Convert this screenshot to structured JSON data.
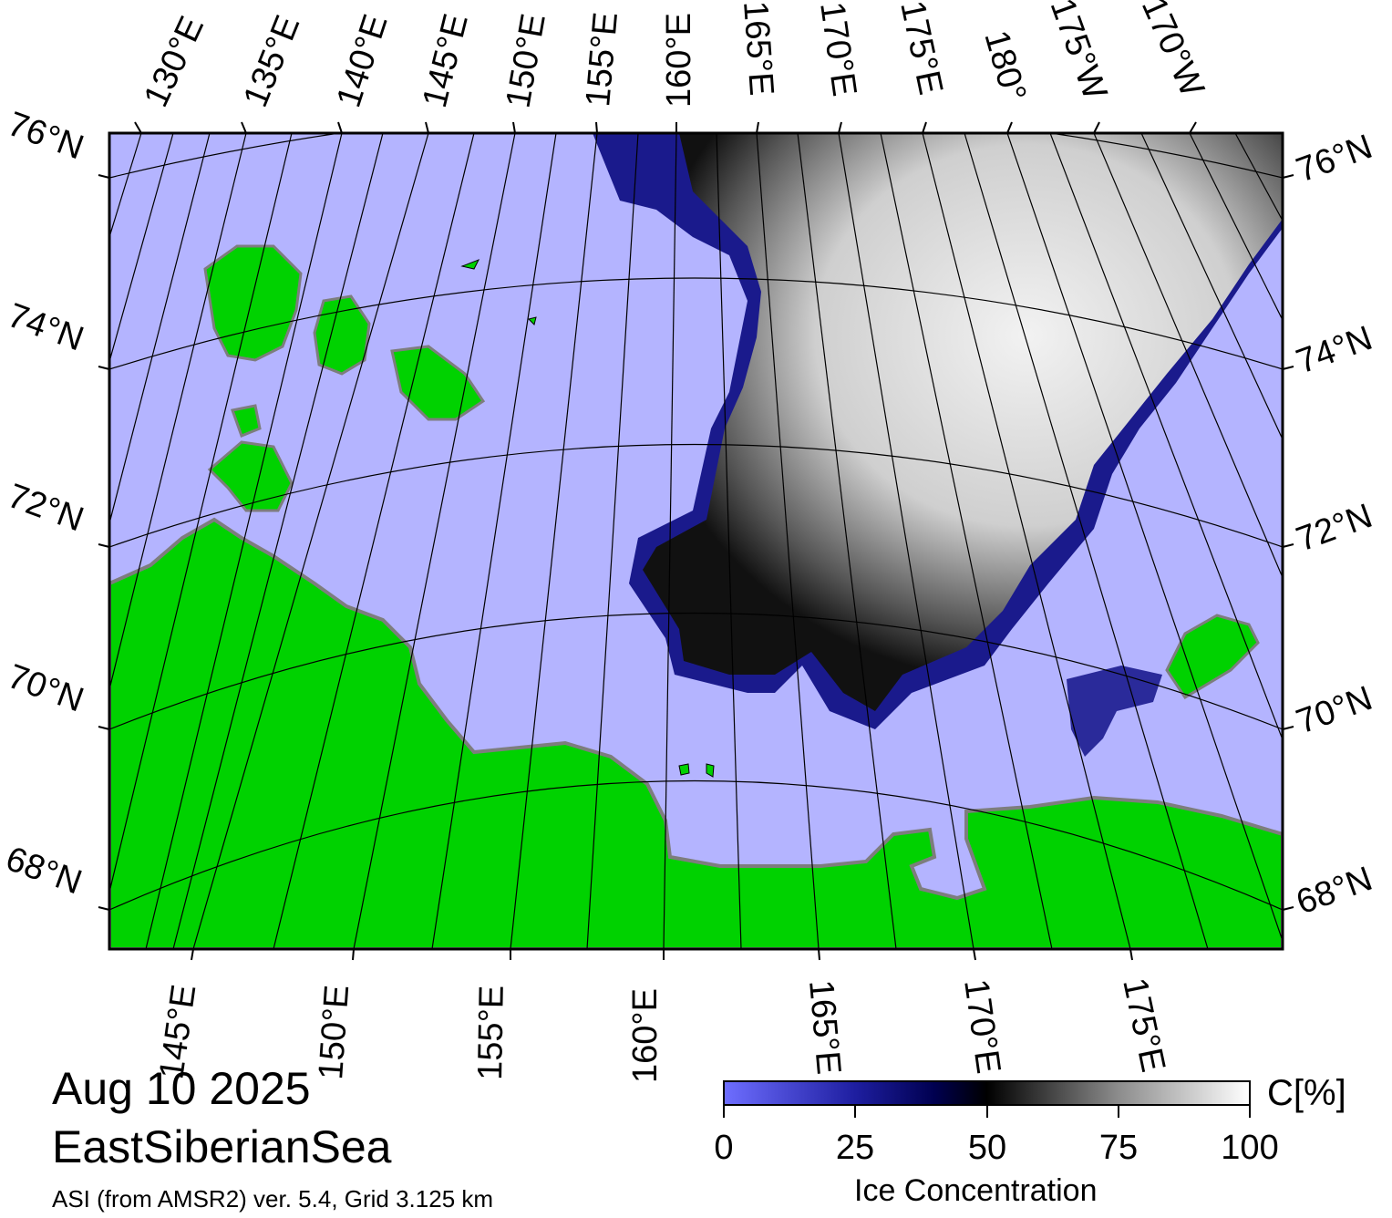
{
  "map": {
    "date": "Aug 10 2025",
    "region": "EastSiberianSea",
    "product": "ASI (from AMSR2) ver. 5.4,  Grid 3.125 km",
    "top_lon_labels": [
      "130°E",
      "135°E",
      "140°E",
      "145°E",
      "150°E",
      "155°E",
      "160°E",
      "165°E",
      "170°E",
      "175°E",
      "180°",
      "175°W",
      "170°W"
    ],
    "bottom_lon_labels": [
      "145°E",
      "150°E",
      "155°E",
      "160°E",
      "165°E",
      "170°E",
      "175°E"
    ],
    "left_lat_labels": [
      "76°N",
      "74°N",
      "72°N",
      "70°N",
      "68°N"
    ],
    "right_lat_labels": [
      "76°N",
      "74°N",
      "72°N",
      "70°N",
      "68°N"
    ],
    "colors": {
      "open_water": "#b4b4ff",
      "land": "#00d200",
      "coast_gray": "#7d7d7d",
      "ice_low": "#5a5aff",
      "ice_mid": "#000064",
      "ice_half": "#000000",
      "ice_full": "#ffffff"
    }
  },
  "colorbar": {
    "title": "Ice Concentration",
    "unit": "C[%]",
    "min": 0,
    "max": 100,
    "tick_labels": [
      "0",
      "25",
      "50",
      "75",
      "100"
    ]
  }
}
